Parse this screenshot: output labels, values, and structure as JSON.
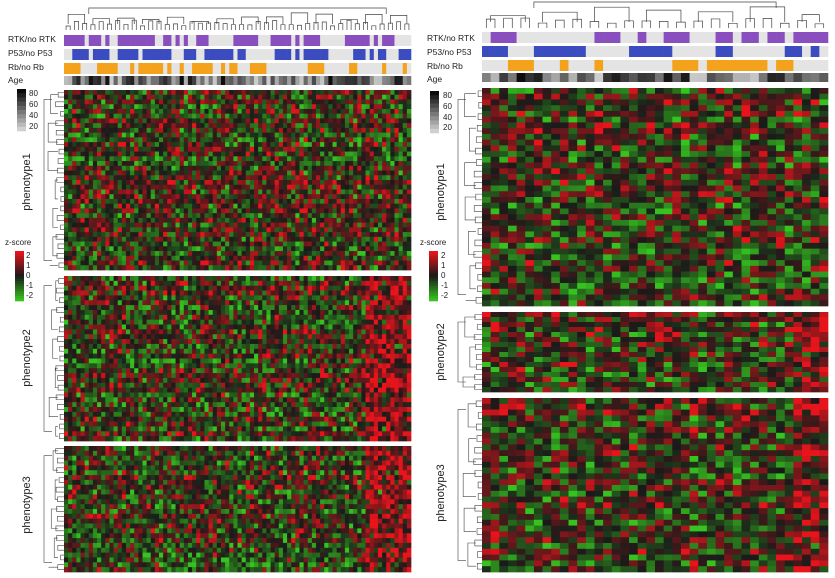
{
  "chart_data": {
    "type": "heatmap",
    "panels": [
      {
        "annotation_tracks": [
          {
            "name": "RTK/no RTK",
            "color": "#8a4fbf"
          },
          {
            "name": "P53/no P53",
            "color": "#3a4cc0"
          },
          {
            "name": "Rb/no Rb",
            "color": "#f4a21b"
          },
          {
            "name": "Age"
          }
        ],
        "age_legend_ticks": [
          "80",
          "60",
          "40",
          "20"
        ],
        "zscore_legend": {
          "title": "z-score",
          "ticks": [
            "2",
            "1",
            "0",
            "-1",
            "-2"
          ]
        },
        "row_groups": [
          {
            "label": "phenotype1",
            "rows": 38
          },
          {
            "label": "phenotype2",
            "rows": 34
          },
          {
            "label": "phenotype3",
            "rows": 26
          }
        ],
        "columns": 84
      },
      {
        "annotation_tracks": [
          {
            "name": "RTK/no RTK",
            "color": "#8a4fbf"
          },
          {
            "name": "P53/no P53",
            "color": "#3a4cc0"
          },
          {
            "name": "Rb/no Rb",
            "color": "#f4a21b"
          },
          {
            "name": "Age"
          }
        ],
        "age_legend_ticks": [
          "80",
          "60",
          "40",
          "20"
        ],
        "zscore_legend": {
          "title": "z-score",
          "ticks": [
            "2",
            "1",
            "0",
            "-1",
            "-2"
          ]
        },
        "row_groups": [
          {
            "label": "phenotype1",
            "rows": 38
          },
          {
            "label": "phenotype2",
            "rows": 16
          },
          {
            "label": "phenotype3",
            "rows": 30
          }
        ],
        "columns": 40
      }
    ],
    "color_scale": {
      "low": "#36c21f",
      "mid": "#1a1a1a",
      "high": "#e8141c"
    }
  }
}
